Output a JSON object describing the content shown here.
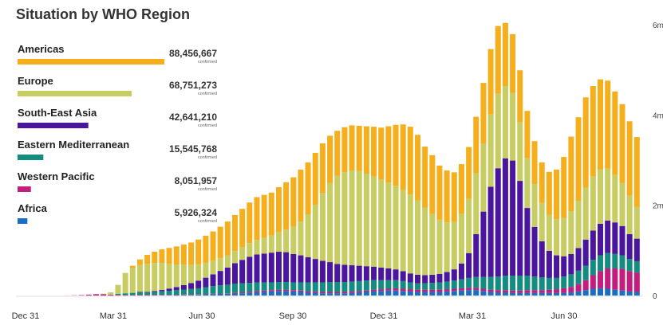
{
  "title": "Situation by WHO Region",
  "confirmed_word": "confirmed",
  "colors": {
    "Americas": "#F6AF1C",
    "Europe": "#C7CC63",
    "South-East Asia": "#4B169E",
    "Eastern Mediterranean": "#148D80",
    "Western Pacific": "#C31D7E",
    "Africa": "#1A6FC4"
  },
  "chart_data": {
    "type": "bar",
    "stacked": true,
    "title": "Situation by WHO Region",
    "x_ticks": [
      "Dec 31",
      "Mar 31",
      "Jun 30",
      "Sep 30",
      "Dec 31",
      "Mar 31",
      "Jun 30"
    ],
    "y_ticks": [
      "0",
      "2m",
      "4m",
      "6m"
    ],
    "ylim": [
      0,
      6000000
    ],
    "region_totals": [
      {
        "name": "Americas",
        "value": "88,456,667"
      },
      {
        "name": "Europe",
        "value": "68,751,273"
      },
      {
        "name": "South-East Asia",
        "value": "42,641,210"
      },
      {
        "name": "Eastern Mediterranean",
        "value": "15,545,768"
      },
      {
        "name": "Western Pacific",
        "value": "8,051,957"
      },
      {
        "name": "Africa",
        "value": "5,926,324"
      }
    ],
    "weeks_from": "Dec 31",
    "series": [
      {
        "name": "Africa",
        "values": [
          0,
          0,
          0,
          0,
          0,
          0,
          0,
          0,
          0,
          0,
          0,
          0,
          0,
          0,
          0.001,
          0.003,
          0.005,
          0.008,
          0.012,
          0.015,
          0.02,
          0.025,
          0.03,
          0.035,
          0.04,
          0.045,
          0.05,
          0.06,
          0.07,
          0.08,
          0.09,
          0.1,
          0.1,
          0.09,
          0.08,
          0.07,
          0.06,
          0.05,
          0.05,
          0.05,
          0.05,
          0.06,
          0.07,
          0.08,
          0.09,
          0.1,
          0.11,
          0.11,
          0.1,
          0.09,
          0.08,
          0.08,
          0.08,
          0.08,
          0.09,
          0.1,
          0.11,
          0.12,
          0.12,
          0.1,
          0.08,
          0.07,
          0.07,
          0.06,
          0.06,
          0.06,
          0.06,
          0.06,
          0.06,
          0.06,
          0.06,
          0.07,
          0.09,
          0.12,
          0.15,
          0.16,
          0.15,
          0.13,
          0.11,
          0.09,
          0.08
        ]
      },
      {
        "name": "Western Pacific",
        "values": [
          0,
          0,
          0.002,
          0.005,
          0.01,
          0.02,
          0.03,
          0.03,
          0.02,
          0.015,
          0.01,
          0.01,
          0.01,
          0.01,
          0.01,
          0.01,
          0.01,
          0.01,
          0.01,
          0.01,
          0.01,
          0.01,
          0.01,
          0.01,
          0.01,
          0.02,
          0.02,
          0.02,
          0.03,
          0.03,
          0.03,
          0.03,
          0.03,
          0.03,
          0.03,
          0.03,
          0.03,
          0.03,
          0.03,
          0.03,
          0.03,
          0.03,
          0.03,
          0.03,
          0.04,
          0.04,
          0.04,
          0.05,
          0.05,
          0.05,
          0.05,
          0.05,
          0.05,
          0.05,
          0.05,
          0.05,
          0.05,
          0.05,
          0.05,
          0.05,
          0.05,
          0.05,
          0.05,
          0.05,
          0.05,
          0.06,
          0.06,
          0.06,
          0.07,
          0.08,
          0.1,
          0.12,
          0.16,
          0.22,
          0.3,
          0.38,
          0.45,
          0.47,
          0.48,
          0.45,
          0.43
        ]
      },
      {
        "name": "Eastern Mediterranean",
        "values": [
          0,
          0,
          0,
          0,
          0,
          0,
          0,
          0,
          0,
          0.02,
          0.04,
          0.05,
          0.06,
          0.06,
          0.07,
          0.08,
          0.09,
          0.1,
          0.11,
          0.12,
          0.13,
          0.15,
          0.17,
          0.18,
          0.19,
          0.2,
          0.2,
          0.2,
          0.19,
          0.18,
          0.17,
          0.17,
          0.17,
          0.17,
          0.18,
          0.19,
          0.2,
          0.21,
          0.22,
          0.22,
          0.22,
          0.22,
          0.22,
          0.22,
          0.21,
          0.2,
          0.19,
          0.18,
          0.17,
          0.15,
          0.14,
          0.14,
          0.15,
          0.16,
          0.17,
          0.18,
          0.2,
          0.22,
          0.24,
          0.26,
          0.28,
          0.3,
          0.32,
          0.33,
          0.33,
          0.32,
          0.3,
          0.28,
          0.26,
          0.25,
          0.26,
          0.28,
          0.3,
          0.32,
          0.34,
          0.35,
          0.34,
          0.32,
          0.3,
          0.27,
          0.25
        ]
      },
      {
        "name": "South-East Asia",
        "values": [
          0,
          0,
          0,
          0,
          0,
          0,
          0,
          0,
          0,
          0,
          0,
          0,
          0.01,
          0.01,
          0.02,
          0.03,
          0.05,
          0.07,
          0.1,
          0.13,
          0.17,
          0.21,
          0.26,
          0.32,
          0.38,
          0.45,
          0.52,
          0.58,
          0.62,
          0.64,
          0.66,
          0.67,
          0.66,
          0.63,
          0.6,
          0.56,
          0.52,
          0.48,
          0.44,
          0.4,
          0.38,
          0.36,
          0.34,
          0.32,
          0.3,
          0.28,
          0.26,
          0.24,
          0.22,
          0.2,
          0.19,
          0.18,
          0.18,
          0.19,
          0.21,
          0.25,
          0.35,
          0.55,
          0.95,
          1.45,
          2.0,
          2.4,
          2.6,
          2.55,
          2.1,
          1.5,
          1.1,
          0.8,
          0.6,
          0.5,
          0.45,
          0.45,
          0.5,
          0.58,
          0.65,
          0.7,
          0.72,
          0.7,
          0.65,
          0.55,
          0.5
        ]
      },
      {
        "name": "Europe",
        "values": [
          0,
          0,
          0,
          0,
          0,
          0,
          0,
          0.01,
          0.05,
          0.2,
          0.45,
          0.55,
          0.6,
          0.62,
          0.62,
          0.6,
          0.55,
          0.5,
          0.45,
          0.4,
          0.36,
          0.33,
          0.3,
          0.28,
          0.27,
          0.27,
          0.28,
          0.3,
          0.32,
          0.35,
          0.38,
          0.43,
          0.5,
          0.6,
          0.75,
          0.95,
          1.2,
          1.5,
          1.75,
          1.95,
          2.05,
          2.1,
          2.1,
          2.05,
          2.0,
          1.95,
          1.9,
          1.85,
          1.8,
          1.75,
          1.65,
          1.5,
          1.35,
          1.2,
          1.1,
          1.05,
          1.1,
          1.2,
          1.35,
          1.5,
          1.6,
          1.65,
          1.6,
          1.5,
          1.3,
          1.1,
          0.95,
          0.85,
          0.8,
          0.8,
          0.85,
          0.95,
          1.05,
          1.15,
          1.2,
          1.2,
          1.15,
          1.05,
          0.95,
          0.85,
          0.7
        ]
      },
      {
        "name": "Americas",
        "values": [
          0,
          0,
          0,
          0,
          0,
          0,
          0,
          0,
          0,
          0,
          0,
          0.05,
          0.12,
          0.2,
          0.25,
          0.3,
          0.35,
          0.4,
          0.45,
          0.5,
          0.55,
          0.6,
          0.65,
          0.7,
          0.75,
          0.8,
          0.85,
          0.9,
          0.95,
          0.95,
          0.95,
          1.0,
          1.05,
          1.1,
          1.15,
          1.15,
          1.15,
          1.1,
          1.05,
          1.0,
          1.0,
          1.0,
          1.0,
          1.05,
          1.1,
          1.15,
          1.25,
          1.35,
          1.45,
          1.5,
          1.45,
          1.35,
          1.3,
          1.2,
          1.15,
          1.1,
          1.1,
          1.15,
          1.25,
          1.35,
          1.45,
          1.5,
          1.4,
          1.3,
          1.15,
          1.05,
          0.95,
          0.9,
          0.95,
          1.1,
          1.35,
          1.65,
          1.85,
          2.0,
          2.0,
          2.0,
          1.95,
          1.85,
          1.75,
          1.65,
          1.55
        ]
      }
    ]
  }
}
